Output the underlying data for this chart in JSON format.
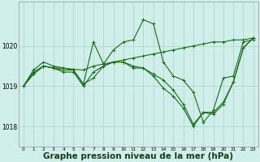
{
  "background_color": "#d0eeea",
  "grid_color": "#b0d8cc",
  "line_color": "#1a6b1a",
  "xlabel": "Graphe pression niveau de la mer (hPa)",
  "xlabel_fontsize": 7.5,
  "xlim": [
    -0.5,
    23.5
  ],
  "ylim": [
    1017.5,
    1021.1
  ],
  "yticks": [
    1018,
    1019,
    1020
  ],
  "xticks": [
    0,
    1,
    2,
    3,
    4,
    5,
    6,
    7,
    8,
    9,
    10,
    11,
    12,
    13,
    14,
    15,
    16,
    17,
    18,
    19,
    20,
    21,
    22,
    23
  ],
  "series": [
    {
      "x": [
        0,
        1,
        2,
        3,
        4,
        5,
        6,
        7,
        8,
        9,
        10,
        11,
        12,
        13,
        14,
        15,
        16,
        17,
        18,
        19,
        20,
        21,
        22,
        23
      ],
      "y": [
        1019.0,
        1019.4,
        1019.6,
        1019.5,
        1019.45,
        1019.4,
        1019.05,
        1020.1,
        1019.55,
        1019.9,
        1020.1,
        1020.15,
        1020.65,
        1020.55,
        1019.6,
        1019.25,
        1019.15,
        1018.85,
        1018.1,
        1018.4,
        1019.2,
        1019.25,
        1020.1,
        1020.15
      ]
    },
    {
      "x": [
        0,
        1,
        2,
        3,
        4,
        5,
        6,
        7,
        8,
        9,
        10,
        11,
        12,
        13,
        14,
        15,
        16,
        17,
        18,
        19,
        20,
        21,
        22,
        23
      ],
      "y": [
        1019.0,
        1019.35,
        1019.5,
        1019.45,
        1019.45,
        1019.42,
        1019.4,
        1019.5,
        1019.55,
        1019.6,
        1019.65,
        1019.7,
        1019.75,
        1019.8,
        1019.85,
        1019.9,
        1019.95,
        1020.0,
        1020.05,
        1020.1,
        1020.1,
        1020.15,
        1020.15,
        1020.2
      ]
    },
    {
      "x": [
        0,
        1,
        2,
        3,
        4,
        5,
        6,
        7,
        8,
        9,
        10,
        11,
        12,
        13,
        14,
        15,
        16,
        17,
        18,
        19,
        20,
        21,
        22,
        23
      ],
      "y": [
        1019.0,
        1019.3,
        1019.5,
        1019.45,
        1019.4,
        1019.4,
        1019.05,
        1019.2,
        1019.5,
        1019.6,
        1019.6,
        1019.5,
        1019.45,
        1019.3,
        1019.15,
        1018.9,
        1018.55,
        1018.05,
        1018.35,
        1018.35,
        1018.6,
        1019.1,
        1019.95,
        1020.2
      ]
    },
    {
      "x": [
        0,
        1,
        2,
        3,
        4,
        5,
        6,
        7,
        8,
        9,
        10,
        11,
        12,
        13,
        14,
        15,
        16,
        17,
        18,
        19,
        20,
        21,
        22,
        23
      ],
      "y": [
        1019.0,
        1019.3,
        1019.5,
        1019.45,
        1019.35,
        1019.35,
        1019.0,
        1019.35,
        1019.5,
        1019.6,
        1019.6,
        1019.45,
        1019.45,
        1019.25,
        1018.95,
        1018.75,
        1018.45,
        1018.0,
        1018.35,
        1018.3,
        1018.55,
        1019.1,
        1019.95,
        1020.2
      ]
    }
  ]
}
